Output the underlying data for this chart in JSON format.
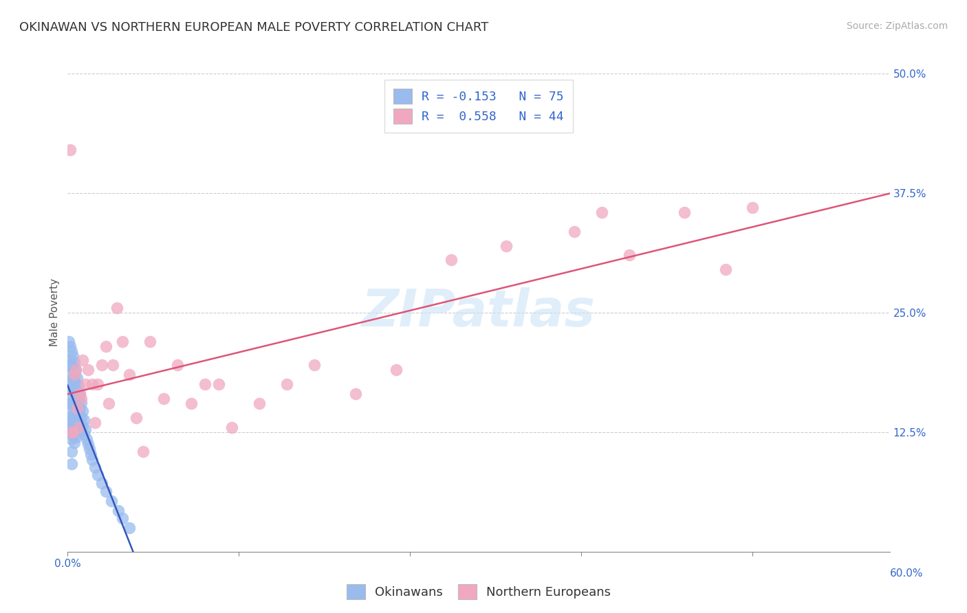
{
  "title": "OKINAWAN VS NORTHERN EUROPEAN MALE POVERTY CORRELATION CHART",
  "source": "Source: ZipAtlas.com",
  "ylabel": "Male Poverty",
  "xlim": [
    0.0,
    0.6
  ],
  "ylim": [
    0.0,
    0.5
  ],
  "background_color": "#ffffff",
  "grid_color": "#cccccc",
  "okinawan_color": "#99bbee",
  "northern_color": "#f0a8c0",
  "okinawan_line_color": "#3355bb",
  "northern_line_color": "#dd5577",
  "okinawan_label": "Okinawans",
  "northern_label": "Northern Europeans",
  "okinawan_R": -0.153,
  "northern_R": 0.558,
  "okinawan_N": 75,
  "northern_N": 44,
  "title_fontsize": 13,
  "axis_label_fontsize": 11,
  "tick_fontsize": 11,
  "legend_fontsize": 13,
  "source_fontsize": 10,
  "blue_text_color": "#3366cc",
  "tick_color": "#3366cc",
  "okinawan_points_x": [
    0.001,
    0.001,
    0.001,
    0.001,
    0.001,
    0.002,
    0.002,
    0.002,
    0.002,
    0.002,
    0.002,
    0.002,
    0.003,
    0.003,
    0.003,
    0.003,
    0.003,
    0.003,
    0.003,
    0.003,
    0.003,
    0.003,
    0.004,
    0.004,
    0.004,
    0.004,
    0.004,
    0.004,
    0.004,
    0.005,
    0.005,
    0.005,
    0.005,
    0.005,
    0.005,
    0.005,
    0.006,
    0.006,
    0.006,
    0.006,
    0.006,
    0.006,
    0.007,
    0.007,
    0.007,
    0.007,
    0.007,
    0.008,
    0.008,
    0.008,
    0.008,
    0.009,
    0.009,
    0.009,
    0.01,
    0.01,
    0.01,
    0.011,
    0.011,
    0.012,
    0.012,
    0.013,
    0.014,
    0.015,
    0.016,
    0.017,
    0.018,
    0.02,
    0.022,
    0.025,
    0.028,
    0.032,
    0.037,
    0.04,
    0.045
  ],
  "okinawan_points_y": [
    0.22,
    0.195,
    0.175,
    0.155,
    0.135,
    0.215,
    0.2,
    0.185,
    0.17,
    0.155,
    0.14,
    0.125,
    0.21,
    0.195,
    0.18,
    0.168,
    0.155,
    0.142,
    0.13,
    0.118,
    0.105,
    0.092,
    0.205,
    0.19,
    0.175,
    0.162,
    0.148,
    0.135,
    0.122,
    0.198,
    0.183,
    0.168,
    0.155,
    0.141,
    0.128,
    0.114,
    0.19,
    0.176,
    0.162,
    0.148,
    0.134,
    0.12,
    0.182,
    0.168,
    0.154,
    0.14,
    0.126,
    0.174,
    0.159,
    0.144,
    0.13,
    0.165,
    0.15,
    0.135,
    0.156,
    0.141,
    0.126,
    0.147,
    0.132,
    0.138,
    0.123,
    0.128,
    0.118,
    0.113,
    0.108,
    0.102,
    0.096,
    0.088,
    0.08,
    0.072,
    0.063,
    0.053,
    0.043,
    0.035,
    0.025
  ],
  "northern_points_x": [
    0.002,
    0.003,
    0.004,
    0.005,
    0.006,
    0.007,
    0.008,
    0.009,
    0.01,
    0.011,
    0.013,
    0.015,
    0.018,
    0.02,
    0.022,
    0.025,
    0.028,
    0.03,
    0.033,
    0.036,
    0.04,
    0.045,
    0.05,
    0.055,
    0.06,
    0.07,
    0.08,
    0.09,
    0.1,
    0.11,
    0.12,
    0.14,
    0.16,
    0.18,
    0.21,
    0.24,
    0.28,
    0.32,
    0.37,
    0.41,
    0.45,
    0.5,
    0.48,
    0.39
  ],
  "northern_points_y": [
    0.42,
    0.125,
    0.125,
    0.185,
    0.19,
    0.15,
    0.13,
    0.165,
    0.16,
    0.2,
    0.175,
    0.19,
    0.175,
    0.135,
    0.175,
    0.195,
    0.215,
    0.155,
    0.195,
    0.255,
    0.22,
    0.185,
    0.14,
    0.105,
    0.22,
    0.16,
    0.195,
    0.155,
    0.175,
    0.175,
    0.13,
    0.155,
    0.175,
    0.195,
    0.165,
    0.19,
    0.305,
    0.32,
    0.335,
    0.31,
    0.355,
    0.36,
    0.295,
    0.355
  ]
}
